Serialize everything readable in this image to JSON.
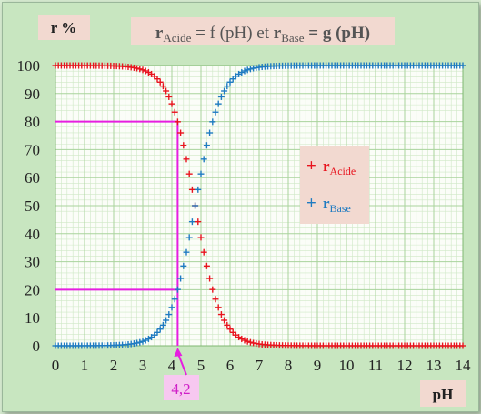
{
  "chart_data": {
    "type": "scatter",
    "title": {
      "r1": "r",
      "r1_sub": "Acide",
      "mid": " = f (pH) et ",
      "r2": "r",
      "r2_sub": "Base",
      "end": " = g (pH)"
    },
    "ylabel": "r %",
    "xlabel": "pH",
    "xlim": [
      0,
      14
    ],
    "ylim": [
      0,
      100
    ],
    "xticks": [
      "0",
      "1",
      "2",
      "3",
      "4",
      "5",
      "6",
      "7",
      "8",
      "9",
      "10",
      "11",
      "12",
      "13",
      "14"
    ],
    "yticks": [
      "0",
      "10",
      "20",
      "30",
      "40",
      "50",
      "60",
      "70",
      "80",
      "90",
      "100"
    ],
    "grid": true,
    "pKa": 4.8,
    "series": [
      {
        "name_main": "r",
        "name_sub": "Acide",
        "color": "#e8141e"
      },
      {
        "name_main": "r",
        "name_sub": "Base",
        "color": "#1f7bc1"
      }
    ],
    "legend_symbol": "+",
    "legend_position": "right",
    "annotation": {
      "label": "4,2",
      "x": 4.2,
      "y_levels": [
        80,
        20
      ],
      "color": "#e61ee0"
    }
  }
}
